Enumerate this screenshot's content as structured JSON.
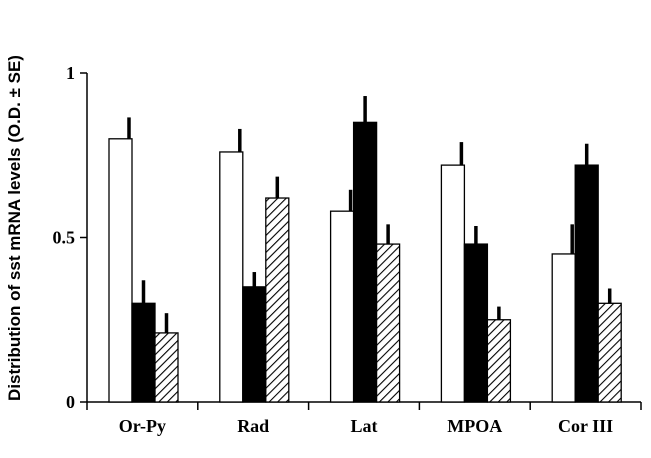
{
  "chart_data": {
    "type": "bar",
    "title": "",
    "xlabel": "",
    "ylabel": "Distribution of sst mRNA levels (O.D. ± SE)",
    "ylim": [
      0,
      1
    ],
    "yticks": [
      "0",
      "0.5",
      "1"
    ],
    "categories": [
      "Or-Py",
      "Rad",
      "Lat",
      "MPOA",
      "Cor III"
    ],
    "series": [
      {
        "fill": "white",
        "values": [
          0.8,
          0.76,
          0.58,
          0.72,
          0.45
        ],
        "errors": [
          0.065,
          0.07,
          0.065,
          0.07,
          0.09
        ]
      },
      {
        "fill": "black",
        "values": [
          0.3,
          0.35,
          0.85,
          0.48,
          0.72
        ],
        "errors": [
          0.07,
          0.045,
          0.08,
          0.055,
          0.065
        ]
      },
      {
        "fill": "hatched",
        "values": [
          0.21,
          0.62,
          0.48,
          0.25,
          0.3
        ],
        "errors": [
          0.06,
          0.065,
          0.06,
          0.04,
          0.045
        ]
      }
    ],
    "legend": "none",
    "grid": false
  }
}
